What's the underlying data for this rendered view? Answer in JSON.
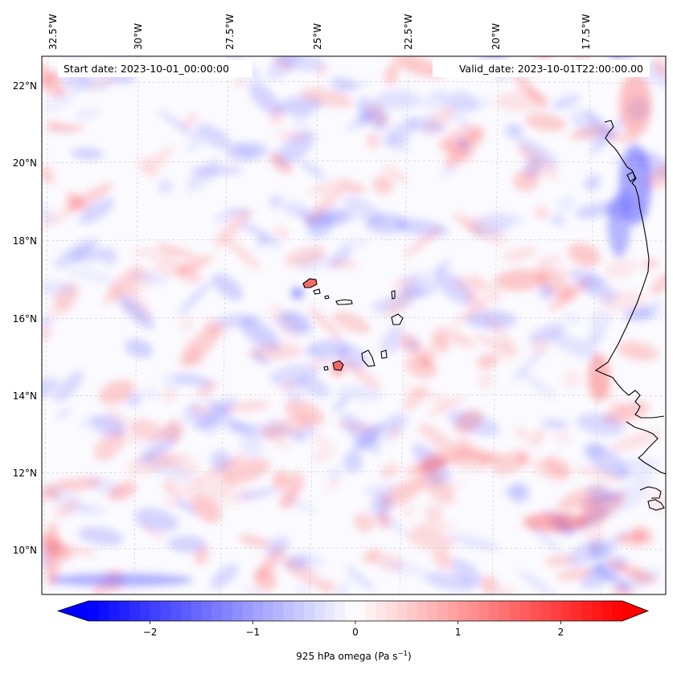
{
  "map": {
    "start_date_label": "Start date: 2023-10-01_00:00:00",
    "valid_date_label": "Valid_date: 2023-10-01T22:00:00.00",
    "lon_ticks": [
      "32.5°W",
      "30°W",
      "27.5°W",
      "25°W",
      "22.5°W",
      "20°W",
      "17.5°W"
    ],
    "lat_ticks": [
      "22°N",
      "20°N",
      "18°N",
      "16°N",
      "14°N",
      "12°N",
      "10°N"
    ],
    "gridlines": true,
    "coastline_color": "#000000"
  },
  "colorbar": {
    "colormap": "bwr",
    "min_color": "#0000ff",
    "mid_color": "#ffffff",
    "max_color": "#ff0000",
    "range": [
      -2.6,
      2.6
    ],
    "extend": "both",
    "ticks": [
      "−2",
      "−1",
      "0",
      "1",
      "2"
    ],
    "label_main": "925 hPa omega (Pa s",
    "label_exp": "−1",
    "label_close": ")"
  }
}
